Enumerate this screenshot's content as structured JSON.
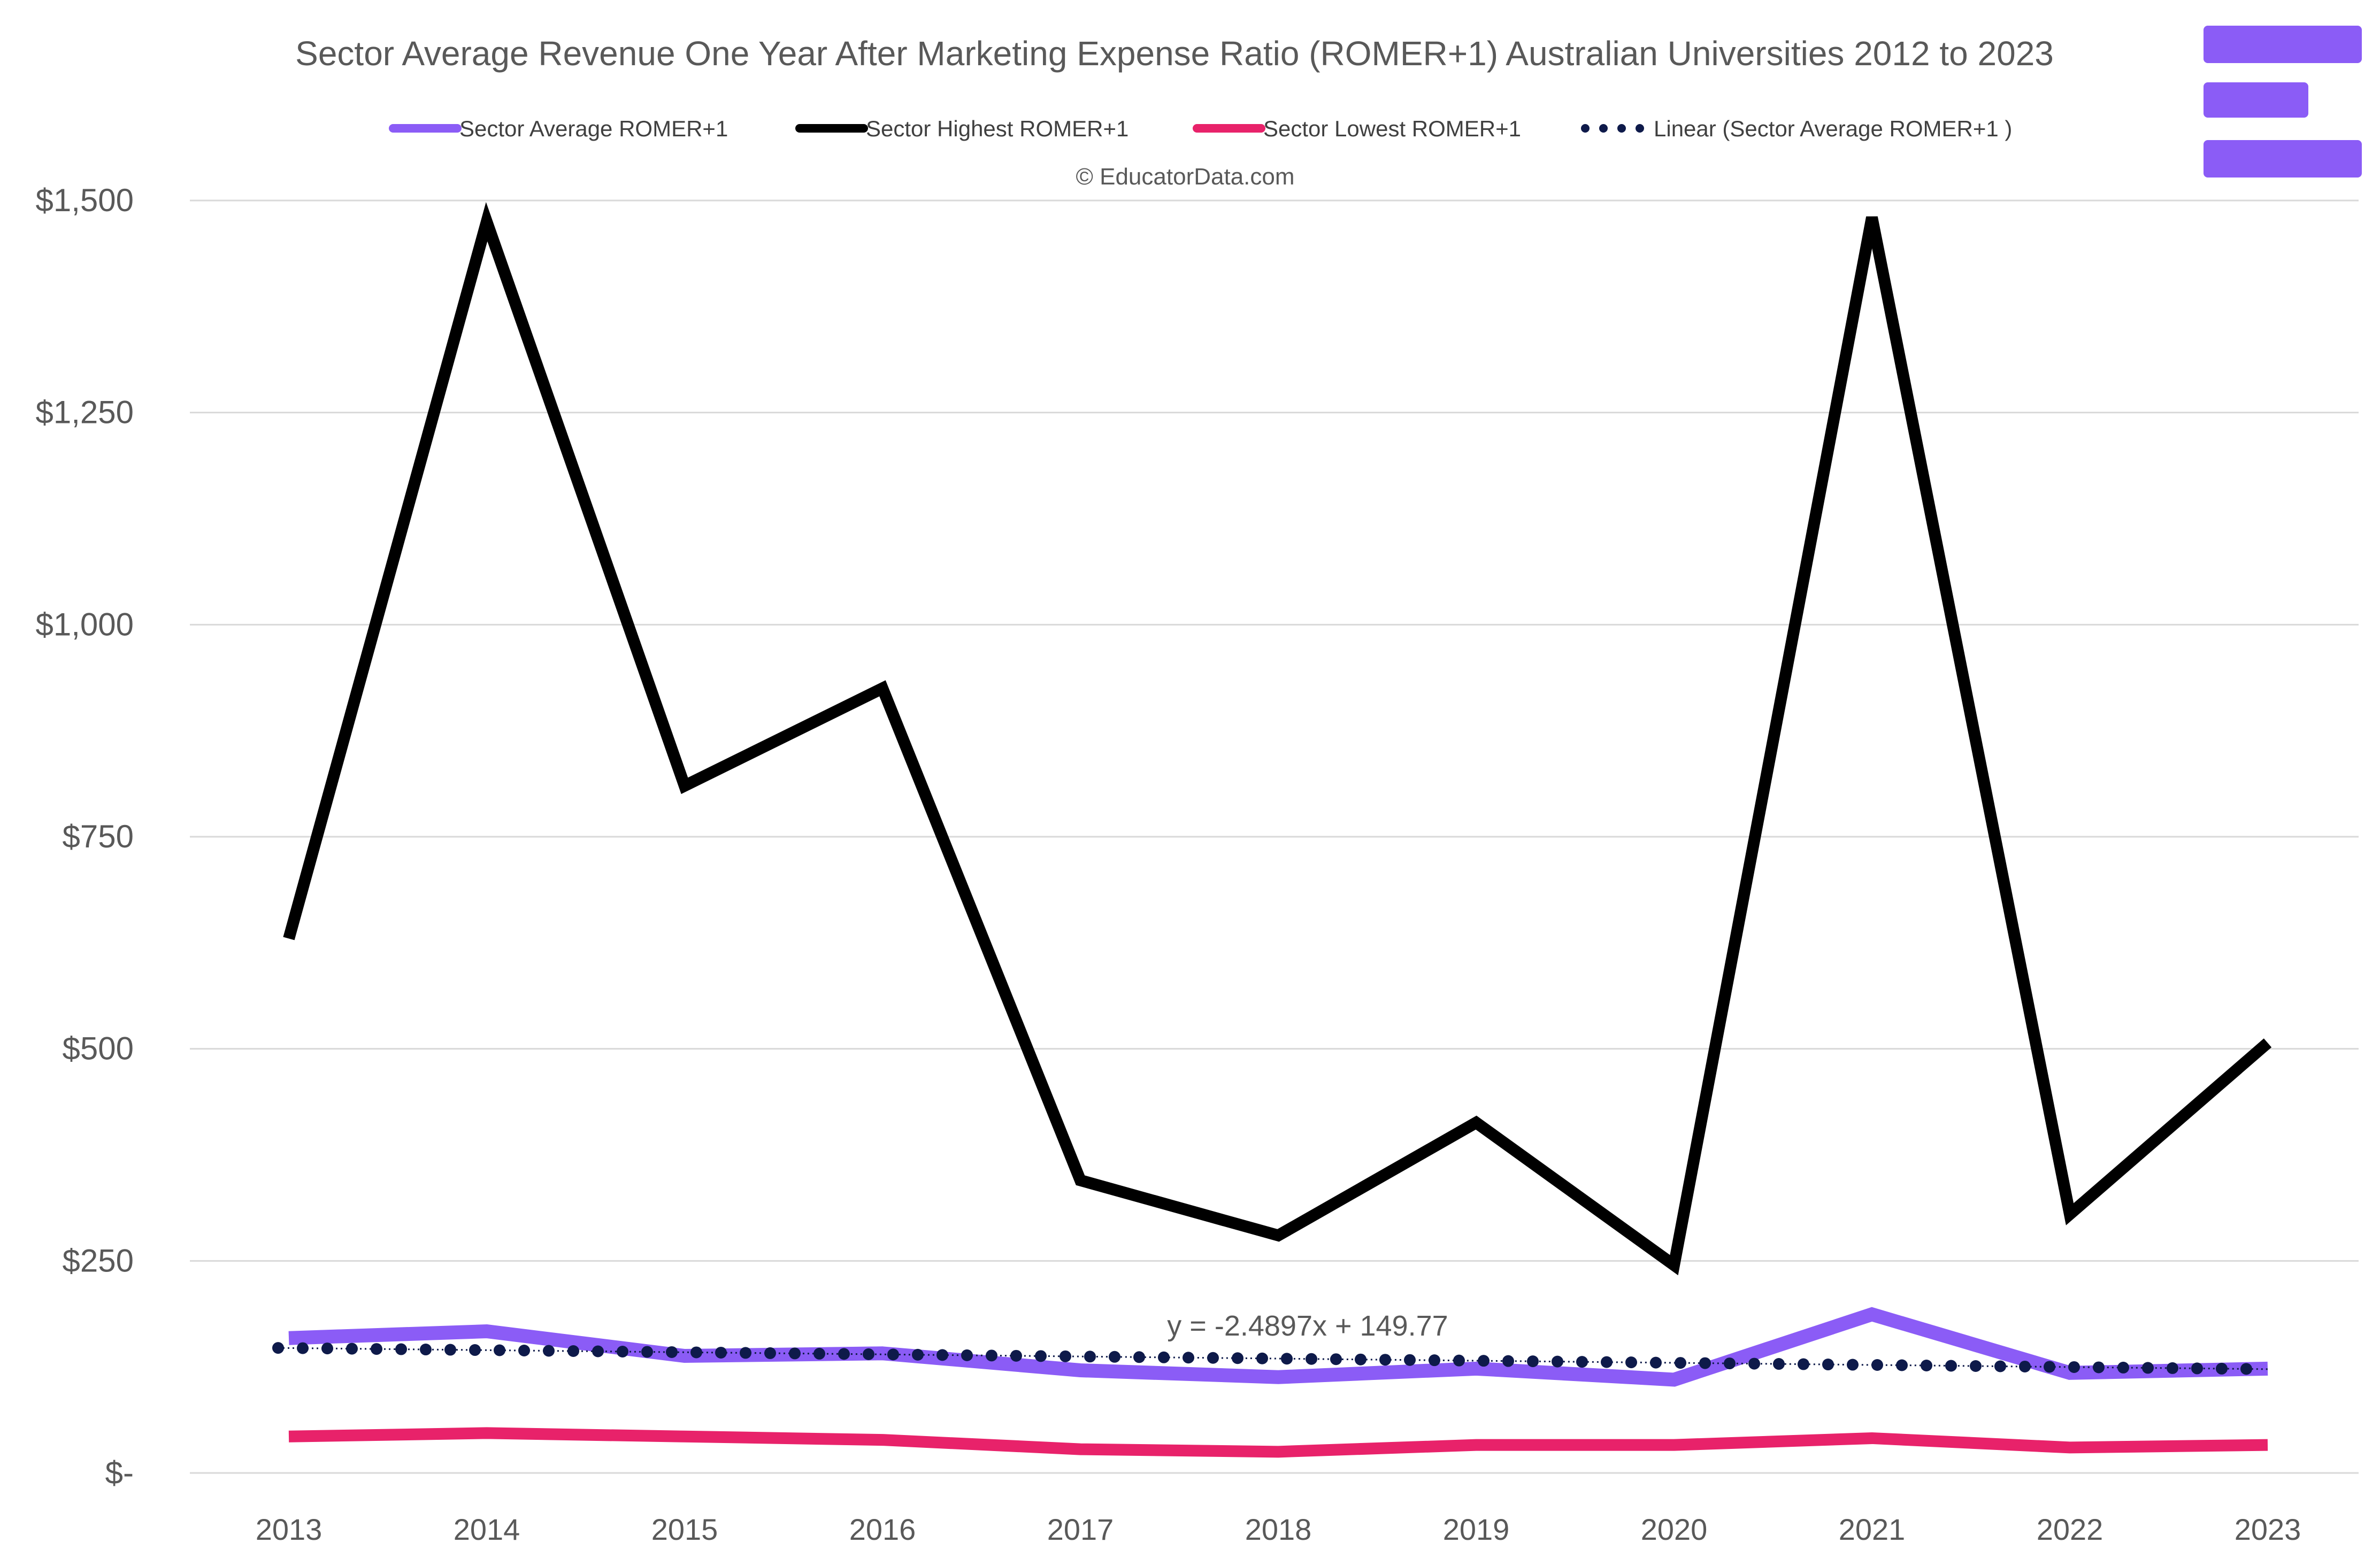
{
  "chart_data": {
    "type": "line",
    "title": "Sector Average Revenue One Year After Marketing Expense Ratio (ROMER+1) Australian Universities 2012 to 2023",
    "credit": "© EducatorData.com",
    "categories": [
      "2013",
      "2014",
      "2015",
      "2016",
      "2017",
      "2018",
      "2019",
      "2020",
      "2021",
      "2022",
      "2023"
    ],
    "y_ticks": [
      {
        "value": 0,
        "label": "$-"
      },
      {
        "value": 250,
        "label": "$250"
      },
      {
        "value": 500,
        "label": "$500"
      },
      {
        "value": 750,
        "label": "$750"
      },
      {
        "value": 1000,
        "label": "$1,000"
      },
      {
        "value": 1250,
        "label": "$1,250"
      },
      {
        "value": 1500,
        "label": "$1,500"
      }
    ],
    "ylim": [
      0,
      1500
    ],
    "grid": true,
    "legend_position": "top",
    "series": [
      {
        "name": "Sector Average ROMER+1",
        "color": "#8B5CF6",
        "style": "solid",
        "values": [
          159,
          167,
          138,
          141,
          121,
          113,
          123,
          110,
          187,
          118,
          123
        ]
      },
      {
        "name": "Sector Highest ROMER+1",
        "color": "#000000",
        "style": "solid",
        "values": [
          630,
          1475,
          810,
          925,
          345,
          280,
          413,
          245,
          1480,
          305,
          507
        ]
      },
      {
        "name": "Sector Lowest ROMER+1",
        "color": "#E8226A",
        "style": "solid",
        "values": [
          43,
          47,
          43,
          39,
          28,
          25,
          33,
          33,
          41,
          30,
          33
        ]
      },
      {
        "name": "Linear (Sector Average ROMER+1 )",
        "color": "#0E1A4A",
        "style": "dotted",
        "trendline": {
          "slope": -2.4897,
          "intercept": 149.77
        }
      }
    ],
    "annotations": [
      {
        "text": "y = -2.4897x + 149.77"
      }
    ]
  },
  "logo": {
    "name": "educatordata-logo",
    "color": "#8B5CF6"
  }
}
